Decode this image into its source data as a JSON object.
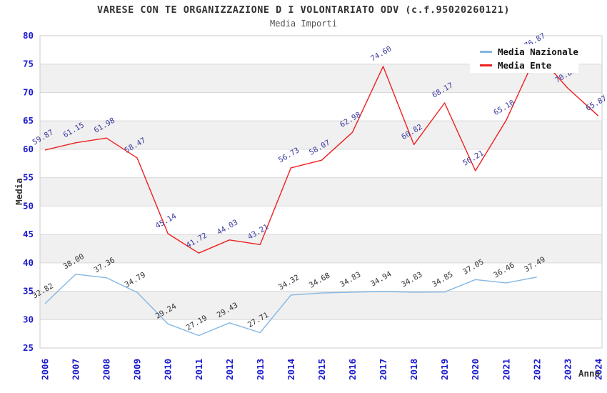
{
  "header": {
    "title": "VARESE CON TE ORGANIZZAZIONE D I VOLONTARIATO ODV (c.f.95020260121)",
    "subtitle": "Media Importi"
  },
  "legend": {
    "items": [
      {
        "label": "Media Nazionale",
        "color": "#85b7e2"
      },
      {
        "label": "Media Ente",
        "color": "#ee2020"
      }
    ]
  },
  "colors": {
    "national_line": "#85b7e2",
    "entity_line": "#ee2020",
    "national_point_label": "#333333",
    "entity_point_label": "#3a3aa0",
    "axis_tick_text": "#1a1acd",
    "gridline": "#d9d9d9",
    "band_fill": "#f0f0f0",
    "plot_border": "#cccccc",
    "axis_title_text": "#333333"
  },
  "chart_data": {
    "type": "line",
    "title": "VARESE CON TE ORGANIZZAZIONE D I VOLONTARIATO ODV (c.f.95020260121)",
    "subtitle": "Media Importi",
    "xlabel": "Anno",
    "ylabel": "Media",
    "ylim": [
      25,
      80
    ],
    "y_tick_step": 5,
    "y_ticks": [
      25,
      30,
      35,
      40,
      45,
      50,
      55,
      60,
      65,
      70,
      75,
      80
    ],
    "grid": "horizontal gridlines with alternating gray bands",
    "legend_position": "inset top-right",
    "categories": [
      2006,
      2007,
      2008,
      2009,
      2010,
      2011,
      2012,
      2013,
      2014,
      2015,
      2016,
      2017,
      2018,
      2019,
      2020,
      2021,
      2022,
      2023,
      2024
    ],
    "series": [
      {
        "name": "Media Nazionale",
        "color": "#85b7e2",
        "values": [
          32.82,
          38.0,
          37.36,
          34.79,
          29.24,
          27.19,
          29.43,
          27.71,
          34.32,
          34.68,
          34.83,
          34.94,
          34.83,
          34.85,
          37.05,
          36.46,
          37.49,
          null,
          null
        ]
      },
      {
        "name": "Media Ente",
        "color": "#ee2020",
        "values": [
          59.87,
          61.15,
          61.98,
          58.47,
          45.14,
          41.72,
          44.03,
          43.21,
          56.73,
          58.07,
          62.98,
          74.6,
          60.82,
          68.17,
          56.21,
          65.1,
          76.87,
          70.8,
          65.87
        ]
      }
    ]
  }
}
